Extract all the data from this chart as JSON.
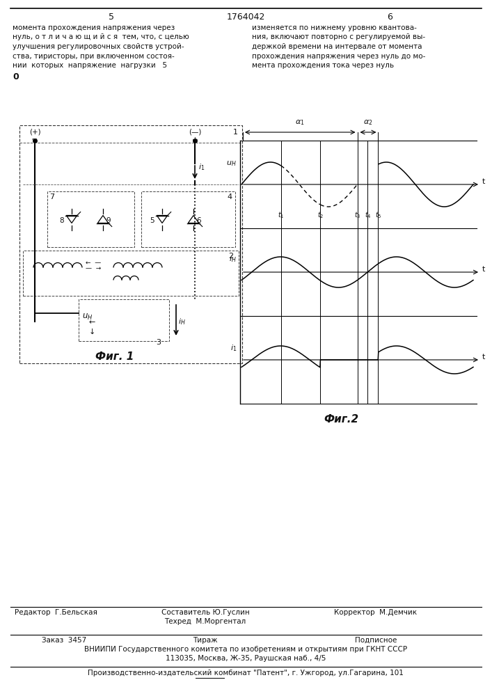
{
  "page_num_left": "5",
  "page_num_center": "1764042",
  "page_num_right": "6",
  "left_col_lines": [
    "момента прохождения напряжения через",
    "нуль, о т л и ч а ю щ и й с я  тем, что, с целью",
    "улучшения регулировочных свойств устрой-",
    "ства, тиристоры, при включенном состоя-",
    "нии  которых  напряжение  нагрузки   5",
    "0"
  ],
  "right_col_lines": [
    "изменяется по нижнему уровню квантова-",
    "ния, включают повторно с регулируемой вы-",
    "держкой времени на интервале от момента",
    "прохождения напряжения через нуль до мо-",
    "мента прохождения тока через нуль"
  ],
  "fig1_label": "Фиг. 1",
  "fig2_label": "Фиг.2",
  "footer_editor": "Редактор  Г.Бельская",
  "footer_composer": "Составитель Ю.Гуслин",
  "footer_tech": "Техред  М.Моргентал",
  "footer_corrector": "Корректор  М.Демчик",
  "footer_order": "Заказ  3457",
  "footer_tirazh": "Тираж",
  "footer_signed": "Подписное",
  "footer_vniipи": "ВНИИПИ Государственного комитета по изобретениям и открытиям при ГКНТ СССР",
  "footer_address": "113035, Москва, Ж-35, Раушская наб., 4/5",
  "footer_plant": "Производственно-издательский комбинат \"Патент\", г. Ужгород, ул.Гагарина, 101",
  "bg_color": "#f5f5f5",
  "text_color": "#111111"
}
